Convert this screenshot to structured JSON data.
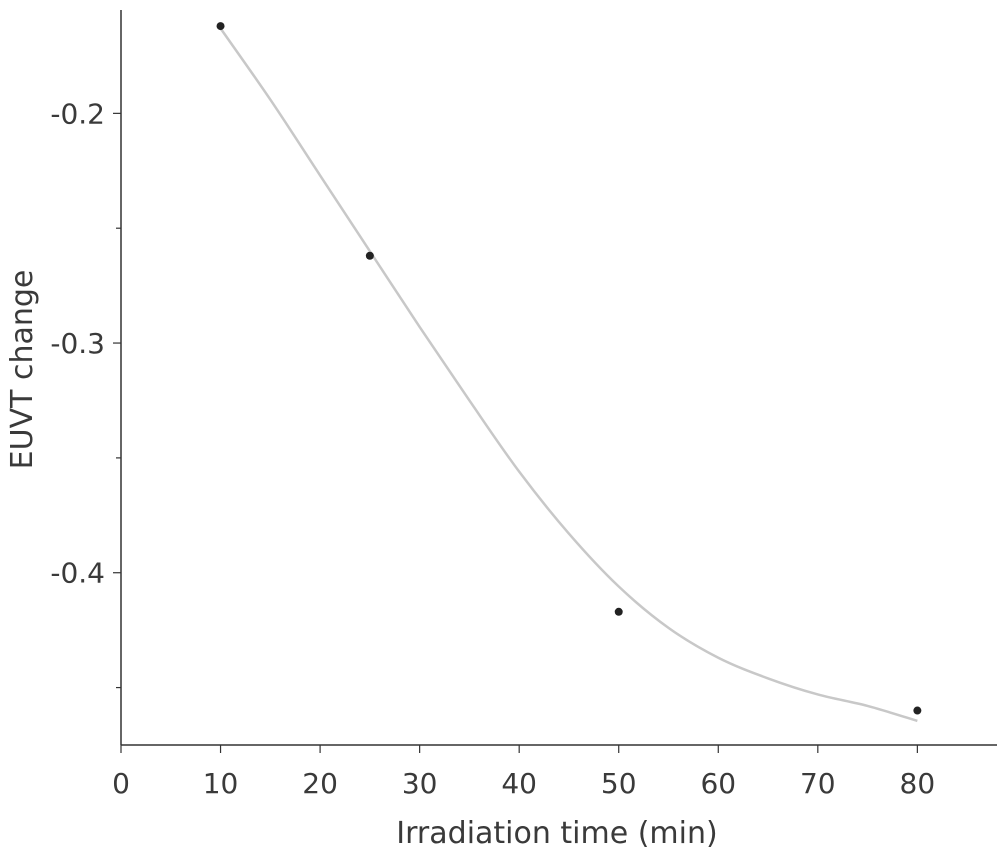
{
  "chart_data": {
    "type": "scatter",
    "title": "",
    "xlabel": "Irradiation time (min)",
    "ylabel": "EUVT change",
    "xlim": [
      0,
      88
    ],
    "ylim": [
      -0.475,
      -0.155
    ],
    "x_ticks": [
      0,
      10,
      20,
      30,
      40,
      50,
      60,
      70,
      80
    ],
    "x_tick_labels": [
      "0",
      "10",
      "20",
      "30",
      "40",
      "50",
      "60",
      "70",
      "80"
    ],
    "y_major_ticks": [
      -0.2,
      -0.3,
      -0.4
    ],
    "y_tick_labels": [
      "-0.2",
      "-0.3",
      "-0.4"
    ],
    "y_minor_ticks": [
      -0.15,
      -0.25,
      -0.35,
      -0.45
    ],
    "series": [
      {
        "points": [
          {
            "x": 10,
            "y": -0.162
          },
          {
            "x": 25,
            "y": -0.262
          },
          {
            "x": 50,
            "y": -0.417
          },
          {
            "x": 80,
            "y": -0.46
          }
        ],
        "marker_color": "#222222"
      }
    ],
    "fit_curve": {
      "color": "#c8c8c8",
      "points": [
        {
          "x": 10,
          "y": -0.163
        },
        {
          "x": 15,
          "y": -0.194
        },
        {
          "x": 20,
          "y": -0.227
        },
        {
          "x": 25,
          "y": -0.26
        },
        {
          "x": 30,
          "y": -0.293
        },
        {
          "x": 35,
          "y": -0.325
        },
        {
          "x": 40,
          "y": -0.356
        },
        {
          "x": 45,
          "y": -0.383
        },
        {
          "x": 50,
          "y": -0.406
        },
        {
          "x": 55,
          "y": -0.424
        },
        {
          "x": 60,
          "y": -0.437
        },
        {
          "x": 65,
          "y": -0.446
        },
        {
          "x": 70,
          "y": -0.453
        },
        {
          "x": 75,
          "y": -0.458
        },
        {
          "x": 80,
          "y": -0.4645
        }
      ]
    },
    "grid": false,
    "legend": "none"
  }
}
